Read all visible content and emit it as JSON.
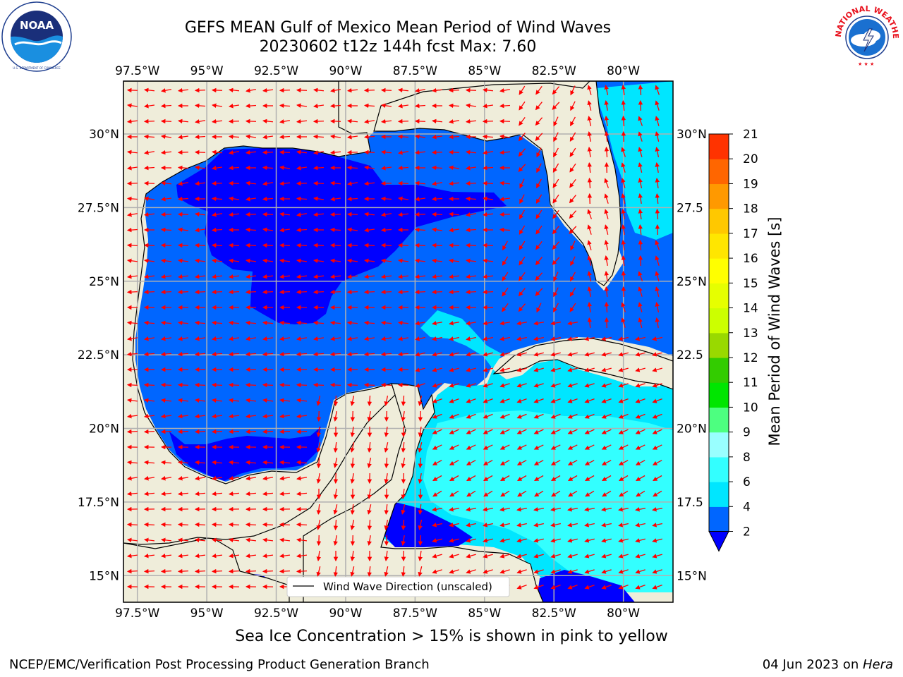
{
  "header": {
    "title_line1": "GEFS MEAN Gulf of Mexico Mean Period of Wind Waves",
    "title_line2": "20230602 t12z 144h fcst   Max: 7.60"
  },
  "logos": {
    "left": {
      "name": "noaa-logo",
      "wordmark": "NOAA",
      "ring_text": "NATIONAL OCEANIC AND ATMOSPHERIC ADMINISTRATION · U.S. DEPARTMENT OF COMMERCE"
    },
    "right": {
      "name": "nws-logo",
      "ring_text": "NATIONAL WEATHER SERVICE"
    }
  },
  "map": {
    "lon_labels": [
      "97.5°W",
      "95°W",
      "92.5°W",
      "90°W",
      "87.5°W",
      "85°W",
      "82.5°W",
      "80°W"
    ],
    "lat_labels": [
      "30°N",
      "27.5°N",
      "25°N",
      "22.5°N",
      "20°N",
      "17.5°N",
      "15°N"
    ],
    "lat_labels_right": [
      "30°N",
      "27.5",
      "25°N",
      "22.5",
      "20°N",
      "17.5",
      "15°N"
    ],
    "lon_values": [
      -97.5,
      -95,
      -92.5,
      -90,
      -87.5,
      -85,
      -82.5,
      -80
    ],
    "lat_values": [
      30,
      27.5,
      25,
      22.5,
      20,
      17.5,
      15
    ],
    "extent": {
      "lon": [
        -98,
        -79
      ],
      "lat": [
        14,
        31.75
      ]
    },
    "legend_label": "Wind Wave Direction (unscaled)",
    "colors": {
      "land": "#efedda",
      "arrow": "#ff0000",
      "grid": "#b0b0b0"
    }
  },
  "colorbar": {
    "label": "Mean Period of Wind Waves [s]",
    "ticks": [
      "2",
      "4",
      "6",
      "8",
      "9",
      "10",
      "11",
      "12",
      "13",
      "14",
      "15",
      "16",
      "17",
      "18",
      "19",
      "20",
      "21"
    ],
    "colors": [
      "#0066ff",
      "#00e6ff",
      "#33ffff",
      "#99ffff",
      "#4dff80",
      "#00e600",
      "#33cc00",
      "#99d900",
      "#ccff00",
      "#e6ff00",
      "#ffff00",
      "#ffe600",
      "#ffc800",
      "#ff9900",
      "#ff6600",
      "#ff3300",
      "#ff0000"
    ],
    "under_color": "#0000ff"
  },
  "footer": {
    "note": "Sea Ice Concentration > 15% is shown in pink to yellow",
    "credit": "NCEP/EMC/Verification Post Processing Product Generation Branch",
    "date": "04 Jun 2023 on ",
    "machine": "Hera"
  }
}
